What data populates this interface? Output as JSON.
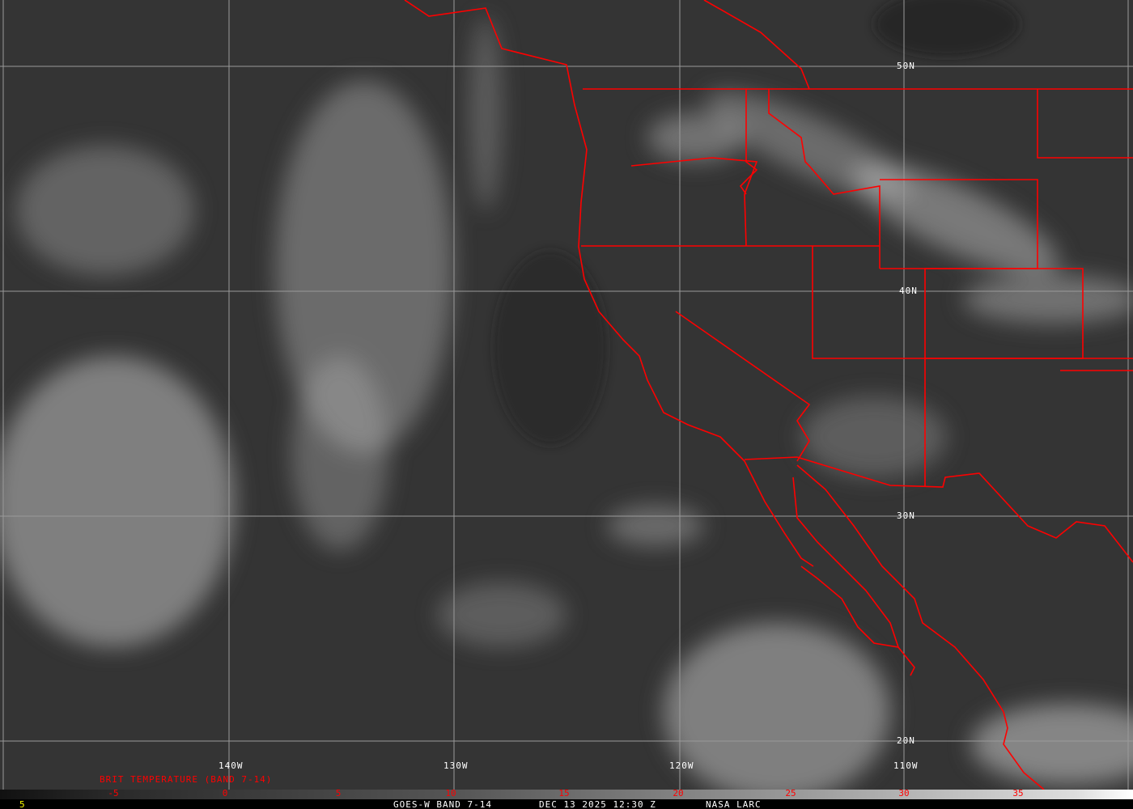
{
  "map": {
    "lat_labels": [
      "50N",
      "40N",
      "30N",
      "20N"
    ],
    "lon_labels": [
      "140W",
      "130W",
      "120W",
      "110W"
    ],
    "product_label": "BRIT TEMPERATURE (BAND 7-14)",
    "scale_ticks": [
      "-5",
      "0",
      "5",
      "10",
      "15",
      "20",
      "25",
      "30",
      "35"
    ],
    "corner_value": "5",
    "satellite": "GOES-W BAND 7-14",
    "datetime": "DEC 13 2025 12:30 Z",
    "credit": "NASA LARC",
    "colors": {
      "borders": "#ff0000",
      "scale_text": "#ff0000",
      "corner_value": "#ffff00",
      "grid": "#9a9a9a"
    }
  }
}
